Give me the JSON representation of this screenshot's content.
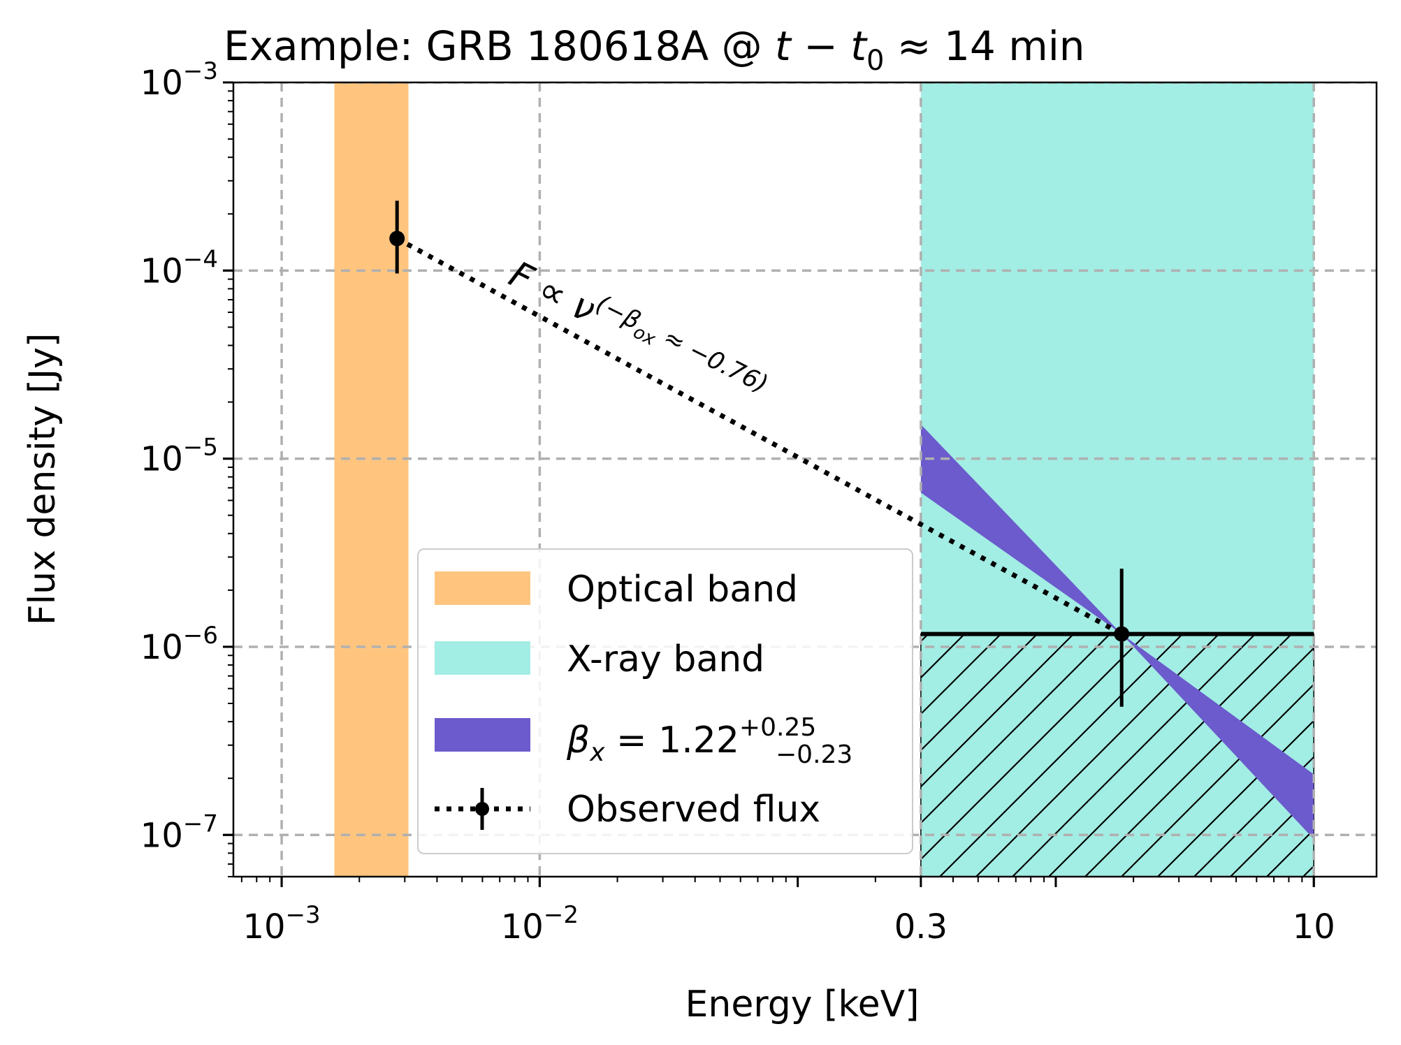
{
  "chart_data": {
    "type": "scatter",
    "title": "Example: GRB 180618A @ t − t₀ ≈ 14 min",
    "title_parts": {
      "prefix": "Example: GRB 180618A @ ",
      "t": "t",
      "minus": " − ",
      "t0_base": "t",
      "t0_sub": "0",
      "rest": " ≈ 14 min"
    },
    "xlabel": "Energy [keV]",
    "ylabel": "Flux density [Jy]",
    "x_scale": "log",
    "y_scale": "log",
    "xlim": [
      0.00065,
      17.5
    ],
    "ylim": [
      6e-08,
      0.001
    ],
    "grid": true,
    "x_ticks": [
      {
        "value": 0.001,
        "base": "10",
        "exp": "−3"
      },
      {
        "value": 0.01,
        "base": "10",
        "exp": "−2"
      },
      {
        "value": 0.3,
        "base": "0.3",
        "exp": ""
      },
      {
        "value": 10,
        "base": "10",
        "exp": ""
      }
    ],
    "y_ticks": [
      {
        "value": 0.001,
        "base": "10",
        "exp": "−3"
      },
      {
        "value": 0.0001,
        "base": "10",
        "exp": "−4"
      },
      {
        "value": 1e-05,
        "base": "10",
        "exp": "−5"
      },
      {
        "value": 1e-06,
        "base": "10",
        "exp": "−6"
      },
      {
        "value": 1e-07,
        "base": "10",
        "exp": "−7"
      }
    ],
    "bands": [
      {
        "name": "Optical band",
        "x_range": [
          0.0016,
          0.0031
        ],
        "color": "#ffc57f"
      },
      {
        "name": "X-ray band",
        "x_range": [
          0.3,
          10
        ],
        "color": "#a2ede4"
      }
    ],
    "beta_x_band": {
      "color": "#6b5bcc",
      "x_range": [
        0.3,
        10
      ],
      "pivot": [
        1.8,
        1.17e-06
      ],
      "upper_at_0_3": 1.52e-05,
      "lower_at_0_3": 6.6e-06,
      "upper_at_10": 2.1e-07,
      "lower_at_10": 9.5e-08
    },
    "upper_limit_region": {
      "x_range": [
        0.3,
        10
      ],
      "hatch": "diagonal"
    },
    "points": [
      {
        "x": 0.0028,
        "y": 0.000148,
        "yerr_low": 9.65e-05,
        "yerr_high": 0.000235
      },
      {
        "x": 1.8,
        "y": 1.17e-06,
        "x_low": 0.3,
        "x_high": 10,
        "yerr_low": 4.8e-07,
        "yerr_high": 2.6e-06
      }
    ],
    "power_law": {
      "from": [
        0.0028,
        0.000148
      ],
      "to": [
        1.8,
        1.17e-06
      ],
      "style": "dotted"
    },
    "annotation": {
      "main": "F ∝ ν",
      "exponent": "(−β",
      "exp_sub": "ox",
      "exp_rest": " ≈ −0.76)"
    },
    "legend": {
      "placement": "lower center",
      "entries": [
        {
          "label": "Optical band",
          "kind": "patch",
          "color": "#ffc57f"
        },
        {
          "label": "X-ray band",
          "kind": "patch",
          "color": "#a2ede4"
        },
        {
          "label_parts": {
            "beta": "β",
            "sub": "x",
            "eq": " = 1.22",
            "sup": "+0.25",
            "inf": "−0.23"
          },
          "kind": "patch",
          "color": "#6b5bcc"
        },
        {
          "label": "Observed flux",
          "kind": "errorbar-dotted",
          "color": "#000000"
        }
      ]
    }
  }
}
